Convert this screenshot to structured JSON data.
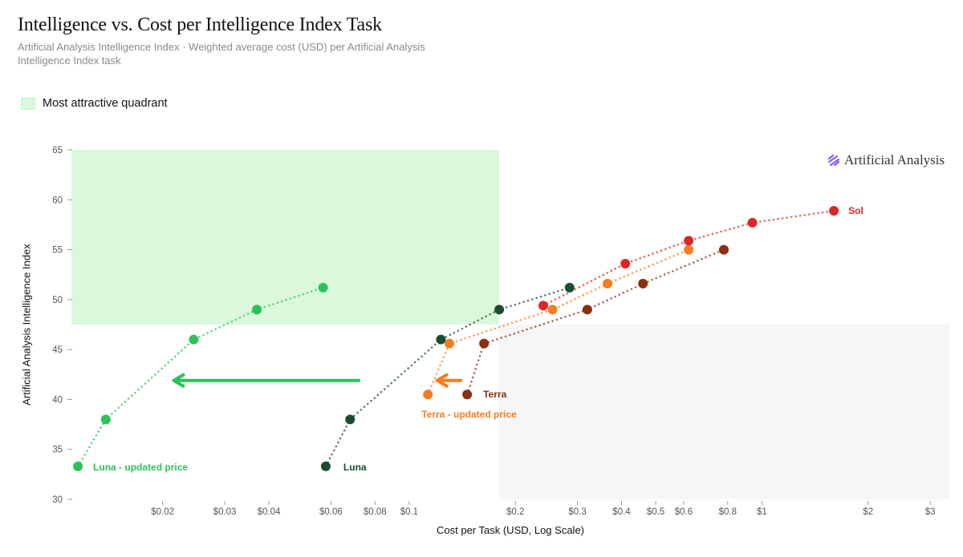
{
  "header": {
    "title": "Intelligence vs. Cost per Intelligence Index Task",
    "subtitle": "Artificial Analysis Intelligence Index · Weighted average cost (USD) per Artificial Analysis Intelligence Index task"
  },
  "legend": {
    "quadrant_label": "Most attractive quadrant",
    "quadrant_color": "#dcf8dc"
  },
  "brand": {
    "name": "Artificial Analysis"
  },
  "chart_data": {
    "type": "scatter",
    "xlabel": "Cost per Task (USD, Log Scale)",
    "ylabel": "Artificial Analysis Intelligence Index",
    "x_scale": "log",
    "xlim": [
      0.0112,
      3.4
    ],
    "ylim": [
      30,
      65
    ],
    "x_ticks": [
      {
        "value": 0.02,
        "label": "$0.02"
      },
      {
        "value": 0.03,
        "label": "$0.03"
      },
      {
        "value": 0.04,
        "label": "$0.04"
      },
      {
        "value": 0.06,
        "label": "$0.06"
      },
      {
        "value": 0.08,
        "label": "$0.08"
      },
      {
        "value": 0.1,
        "label": "$0.1"
      },
      {
        "value": 0.2,
        "label": "$0.2"
      },
      {
        "value": 0.3,
        "label": "$0.3"
      },
      {
        "value": 0.4,
        "label": "$0.4"
      },
      {
        "value": 0.5,
        "label": "$0.5"
      },
      {
        "value": 0.6,
        "label": "$0.6"
      },
      {
        "value": 0.8,
        "label": "$0.8"
      },
      {
        "value": 1,
        "label": "$1"
      },
      {
        "value": 2,
        "label": "$2"
      },
      {
        "value": 3,
        "label": "$3"
      }
    ],
    "y_ticks": [
      30,
      35,
      40,
      45,
      50,
      55,
      60,
      65
    ],
    "quadrants": {
      "attractive": {
        "x_max": 0.18,
        "y_min": 47.5,
        "color": "#dcf8dc"
      },
      "unattractive": {
        "x_min": 0.18,
        "y_max": 47.5,
        "color": "#f6f6f6"
      }
    },
    "series": [
      {
        "name": "Luna - updated price",
        "color": "#2cc25a",
        "x": [
          0.0115,
          0.0138,
          0.0245,
          0.037,
          0.057
        ],
        "y": [
          33.3,
          38.0,
          46.0,
          49.0,
          51.2
        ]
      },
      {
        "name": "Luna",
        "color": "#1a4d2e",
        "x": [
          0.058,
          0.068,
          0.123,
          0.18,
          0.285
        ],
        "y": [
          33.3,
          38.0,
          46.0,
          49.0,
          51.2
        ]
      },
      {
        "name": "Terra - updated price",
        "color": "#f57c20",
        "x": [
          0.113,
          0.13,
          0.255,
          0.365,
          0.62
        ],
        "y": [
          40.5,
          45.6,
          49.0,
          51.6,
          55.0
        ]
      },
      {
        "name": "Terra",
        "color": "#8b2e12",
        "x": [
          0.146,
          0.163,
          0.32,
          0.46,
          0.78
        ],
        "y": [
          40.5,
          45.6,
          49.0,
          51.6,
          55.0
        ]
      },
      {
        "name": "Sol",
        "color": "#dc2626",
        "x": [
          0.24,
          0.41,
          0.62,
          0.94,
          1.6
        ],
        "y": [
          49.4,
          53.6,
          55.9,
          57.7,
          58.9
        ]
      }
    ],
    "arrows": [
      {
        "color": "#2cc25a",
        "from_x": 0.072,
        "to_x": 0.0215,
        "y": 41.9
      },
      {
        "color": "#f57c20",
        "from_x": 0.14,
        "to_x": 0.12,
        "y": 41.9
      }
    ]
  }
}
